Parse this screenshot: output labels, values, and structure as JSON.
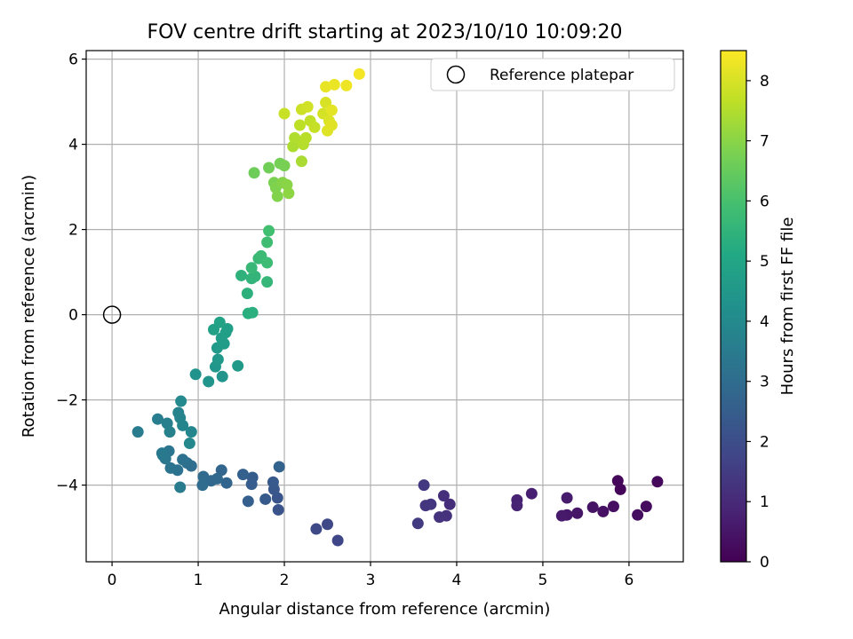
{
  "chart_data": {
    "type": "scatter",
    "title": "FOV centre drift starting at 2023/10/10 10:09:20",
    "xlabel": "Angular distance from reference (arcmin)",
    "ylabel": "Rotation from reference (arcmin)",
    "xlim": [
      -0.3,
      6.63
    ],
    "ylim": [
      -5.8,
      6.2
    ],
    "xticks": [
      0,
      1,
      2,
      3,
      4,
      5,
      6
    ],
    "yticks": [
      -4,
      -2,
      0,
      2,
      4,
      6
    ],
    "xtick_labels": [
      "0",
      "1",
      "2",
      "3",
      "4",
      "5",
      "6"
    ],
    "ytick_labels": [
      "−4",
      "−2",
      "0",
      "2",
      "4",
      "6"
    ],
    "grid": true,
    "legend": {
      "position": "top-right",
      "label": "Reference platepar"
    },
    "reference_point": {
      "x": 0,
      "y": 0
    },
    "colorbar": {
      "label": "Hours from first FF file",
      "range": [
        0,
        8.5
      ],
      "ticks": [
        0,
        1,
        2,
        3,
        4,
        5,
        6,
        7,
        8
      ],
      "tick_labels": [
        "0",
        "1",
        "2",
        "3",
        "4",
        "5",
        "6",
        "7",
        "8"
      ],
      "colormap": "viridis"
    },
    "points": [
      {
        "x": 5.9,
        "y": -4.1,
        "h": 0.1
      },
      {
        "x": 5.87,
        "y": -3.9,
        "h": 0.15
      },
      {
        "x": 6.33,
        "y": -3.92,
        "h": 0.2
      },
      {
        "x": 6.2,
        "y": -4.5,
        "h": 0.25
      },
      {
        "x": 6.1,
        "y": -4.7,
        "h": 0.3
      },
      {
        "x": 5.82,
        "y": -4.5,
        "h": 0.35
      },
      {
        "x": 5.7,
        "y": -4.62,
        "h": 0.4
      },
      {
        "x": 5.58,
        "y": -4.52,
        "h": 0.45
      },
      {
        "x": 5.4,
        "y": -4.66,
        "h": 0.5
      },
      {
        "x": 5.28,
        "y": -4.7,
        "h": 0.55
      },
      {
        "x": 5.22,
        "y": -4.72,
        "h": 0.6
      },
      {
        "x": 5.28,
        "y": -4.3,
        "h": 0.65
      },
      {
        "x": 4.87,
        "y": -4.2,
        "h": 0.75
      },
      {
        "x": 4.7,
        "y": -4.35,
        "h": 0.8
      },
      {
        "x": 4.7,
        "y": -4.48,
        "h": 0.85
      },
      {
        "x": 3.92,
        "y": -4.45,
        "h": 1.1
      },
      {
        "x": 3.85,
        "y": -4.25,
        "h": 1.15
      },
      {
        "x": 3.88,
        "y": -4.72,
        "h": 1.2
      },
      {
        "x": 3.8,
        "y": -4.75,
        "h": 1.25
      },
      {
        "x": 3.7,
        "y": -4.45,
        "h": 1.3
      },
      {
        "x": 3.64,
        "y": -4.48,
        "h": 1.35
      },
      {
        "x": 3.62,
        "y": -4.0,
        "h": 1.4
      },
      {
        "x": 3.55,
        "y": -4.9,
        "h": 1.45
      },
      {
        "x": 2.62,
        "y": -5.3,
        "h": 1.8
      },
      {
        "x": 2.5,
        "y": -4.92,
        "h": 1.85
      },
      {
        "x": 2.37,
        "y": -5.03,
        "h": 1.9
      },
      {
        "x": 1.93,
        "y": -4.58,
        "h": 2.2
      },
      {
        "x": 1.92,
        "y": -4.3,
        "h": 2.25
      },
      {
        "x": 1.88,
        "y": -4.1,
        "h": 2.3
      },
      {
        "x": 1.87,
        "y": -3.93,
        "h": 2.35
      },
      {
        "x": 1.78,
        "y": -4.33,
        "h": 2.4
      },
      {
        "x": 1.63,
        "y": -3.82,
        "h": 2.45
      },
      {
        "x": 1.62,
        "y": -3.98,
        "h": 2.5
      },
      {
        "x": 1.58,
        "y": -4.38,
        "h": 2.55
      },
      {
        "x": 1.52,
        "y": -3.75,
        "h": 2.6
      },
      {
        "x": 1.94,
        "y": -3.57,
        "h": 2.7
      },
      {
        "x": 1.33,
        "y": -3.95,
        "h": 2.75
      },
      {
        "x": 1.27,
        "y": -3.65,
        "h": 2.8
      },
      {
        "x": 1.22,
        "y": -3.85,
        "h": 2.85
      },
      {
        "x": 1.15,
        "y": -3.9,
        "h": 2.9
      },
      {
        "x": 1.06,
        "y": -3.8,
        "h": 2.95
      },
      {
        "x": 1.05,
        "y": -4.0,
        "h": 3.0
      },
      {
        "x": 0.92,
        "y": -3.55,
        "h": 3.05
      },
      {
        "x": 0.87,
        "y": -3.48,
        "h": 3.1
      },
      {
        "x": 0.82,
        "y": -3.4,
        "h": 3.15
      },
      {
        "x": 0.76,
        "y": -3.65,
        "h": 3.2
      },
      {
        "x": 0.68,
        "y": -3.6,
        "h": 3.25
      },
      {
        "x": 0.66,
        "y": -3.2,
        "h": 3.3
      },
      {
        "x": 0.62,
        "y": -3.38,
        "h": 3.35
      },
      {
        "x": 0.59,
        "y": -3.3,
        "h": 3.4
      },
      {
        "x": 0.58,
        "y": -3.25,
        "h": 3.45
      },
      {
        "x": 0.79,
        "y": -4.05,
        "h": 3.5
      },
      {
        "x": 0.3,
        "y": -2.75,
        "h": 3.55
      },
      {
        "x": 0.53,
        "y": -2.45,
        "h": 3.6
      },
      {
        "x": 0.64,
        "y": -2.55,
        "h": 3.65
      },
      {
        "x": 0.67,
        "y": -2.75,
        "h": 3.7
      },
      {
        "x": 0.77,
        "y": -2.3,
        "h": 3.75
      },
      {
        "x": 0.79,
        "y": -2.42,
        "h": 3.8
      },
      {
        "x": 0.82,
        "y": -2.6,
        "h": 3.85
      },
      {
        "x": 0.92,
        "y": -2.75,
        "h": 3.9
      },
      {
        "x": 0.9,
        "y": -3.02,
        "h": 3.95
      },
      {
        "x": 0.8,
        "y": -2.03,
        "h": 4.0
      },
      {
        "x": 0.97,
        "y": -1.4,
        "h": 4.3
      },
      {
        "x": 1.12,
        "y": -1.57,
        "h": 4.35
      },
      {
        "x": 1.28,
        "y": -1.45,
        "h": 4.4
      },
      {
        "x": 1.2,
        "y": -1.22,
        "h": 4.45
      },
      {
        "x": 1.23,
        "y": -1.05,
        "h": 4.5
      },
      {
        "x": 1.46,
        "y": -1.2,
        "h": 4.55
      },
      {
        "x": 1.22,
        "y": -0.78,
        "h": 4.6
      },
      {
        "x": 1.3,
        "y": -0.68,
        "h": 4.65
      },
      {
        "x": 1.27,
        "y": -0.55,
        "h": 4.7
      },
      {
        "x": 1.32,
        "y": -0.42,
        "h": 4.75
      },
      {
        "x": 1.34,
        "y": -0.33,
        "h": 4.8
      },
      {
        "x": 1.18,
        "y": -0.35,
        "h": 4.85
      },
      {
        "x": 1.25,
        "y": -0.18,
        "h": 4.9
      },
      {
        "x": 1.58,
        "y": 0.03,
        "h": 5.3
      },
      {
        "x": 1.63,
        "y": 0.05,
        "h": 5.35
      },
      {
        "x": 1.57,
        "y": 0.5,
        "h": 5.4
      },
      {
        "x": 1.5,
        "y": 0.92,
        "h": 5.45
      },
      {
        "x": 1.62,
        "y": 0.85,
        "h": 5.5
      },
      {
        "x": 1.66,
        "y": 0.9,
        "h": 5.55
      },
      {
        "x": 1.8,
        "y": 0.77,
        "h": 5.6
      },
      {
        "x": 1.62,
        "y": 1.1,
        "h": 5.65
      },
      {
        "x": 1.7,
        "y": 1.32,
        "h": 5.7
      },
      {
        "x": 1.73,
        "y": 1.38,
        "h": 5.75
      },
      {
        "x": 1.8,
        "y": 1.22,
        "h": 5.8
      },
      {
        "x": 1.8,
        "y": 1.7,
        "h": 5.85
      },
      {
        "x": 1.82,
        "y": 1.97,
        "h": 5.9
      },
      {
        "x": 1.65,
        "y": 3.33,
        "h": 6.6
      },
      {
        "x": 1.82,
        "y": 3.45,
        "h": 6.65
      },
      {
        "x": 1.95,
        "y": 3.55,
        "h": 6.7
      },
      {
        "x": 2.0,
        "y": 3.5,
        "h": 6.75
      },
      {
        "x": 1.88,
        "y": 3.1,
        "h": 6.8
      },
      {
        "x": 1.9,
        "y": 2.98,
        "h": 6.85
      },
      {
        "x": 1.92,
        "y": 2.78,
        "h": 6.9
      },
      {
        "x": 1.98,
        "y": 3.1,
        "h": 6.95
      },
      {
        "x": 2.03,
        "y": 3.05,
        "h": 7.0
      },
      {
        "x": 2.05,
        "y": 2.85,
        "h": 7.05
      },
      {
        "x": 2.2,
        "y": 3.6,
        "h": 7.4
      },
      {
        "x": 2.1,
        "y": 3.95,
        "h": 7.45
      },
      {
        "x": 2.12,
        "y": 4.15,
        "h": 7.5
      },
      {
        "x": 2.22,
        "y": 4.0,
        "h": 7.55
      },
      {
        "x": 2.25,
        "y": 4.15,
        "h": 7.6
      },
      {
        "x": 2.18,
        "y": 4.45,
        "h": 7.65
      },
      {
        "x": 2.3,
        "y": 4.55,
        "h": 7.7
      },
      {
        "x": 2.35,
        "y": 4.4,
        "h": 7.75
      },
      {
        "x": 2.0,
        "y": 4.72,
        "h": 7.8
      },
      {
        "x": 2.2,
        "y": 4.82,
        "h": 7.85
      },
      {
        "x": 2.27,
        "y": 4.88,
        "h": 7.9
      },
      {
        "x": 2.45,
        "y": 4.72,
        "h": 7.95
      },
      {
        "x": 2.48,
        "y": 4.98,
        "h": 8.0
      },
      {
        "x": 2.52,
        "y": 4.55,
        "h": 8.05
      },
      {
        "x": 2.5,
        "y": 4.32,
        "h": 8.1
      },
      {
        "x": 2.55,
        "y": 4.45,
        "h": 8.12
      },
      {
        "x": 2.55,
        "y": 4.8,
        "h": 8.15
      },
      {
        "x": 2.48,
        "y": 5.35,
        "h": 8.2
      },
      {
        "x": 2.58,
        "y": 5.4,
        "h": 8.25
      },
      {
        "x": 2.72,
        "y": 5.38,
        "h": 8.3
      },
      {
        "x": 2.87,
        "y": 5.65,
        "h": 8.4
      }
    ]
  }
}
